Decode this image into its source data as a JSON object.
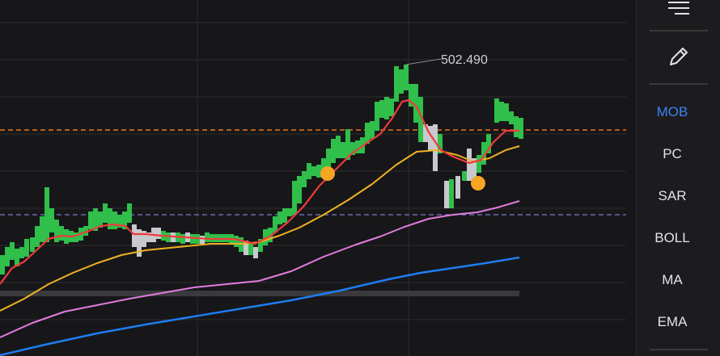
{
  "chart": {
    "high_marker_label": "502.490",
    "colors": {
      "background": "#17171a",
      "grid": "#2c2c2f",
      "up": "#2fbf4a",
      "down": "#c7c9ce",
      "ma_red": "#ef3b3b",
      "ma_yellow": "#f0b323",
      "ma_pink": "#e27ce0",
      "ma_blue": "#1e7df0",
      "dashed_orange": "#e8761c",
      "dashed_purple": "#7b78c9",
      "signal_dot": "#f5a623"
    }
  },
  "toolbar": {
    "menu_icon": "hamburger-icon",
    "draw_icon": "pencil-icon",
    "items": [
      {
        "label": "MOB",
        "active": true
      },
      {
        "label": "PC",
        "active": false
      },
      {
        "label": "SAR",
        "active": false
      },
      {
        "label": "BOLL",
        "active": false
      },
      {
        "label": "MA",
        "active": false
      },
      {
        "label": "EMA",
        "active": false
      }
    ]
  }
}
